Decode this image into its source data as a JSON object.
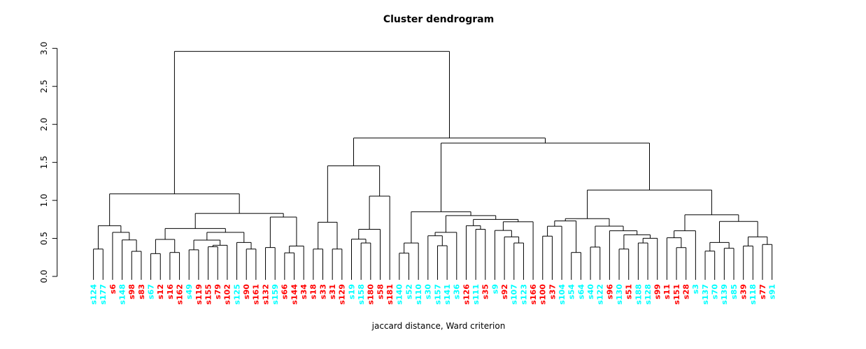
{
  "title": "Cluster dendrogram",
  "xlabel": "jaccard distance, Ward criterion",
  "colors": {
    "group_red": "#FF0000",
    "group_cyan": "#00FFFF",
    "line": "#000000"
  },
  "chart_data": {
    "type": "dendrogram",
    "title": "Cluster dendrogram",
    "xlabel": "jaccard distance, Ward criterion",
    "ylabel": "",
    "ylim": [
      0.0,
      3.0
    ],
    "yticks": [
      "0.0",
      "0.5",
      "1.0",
      "1.5",
      "2.0",
      "2.5",
      "3.0"
    ],
    "grid": false,
    "leaves": [
      {
        "label": "s124",
        "color": "cyan"
      },
      {
        "label": "s177",
        "color": "cyan"
      },
      {
        "label": "s6",
        "color": "red"
      },
      {
        "label": "s148",
        "color": "cyan"
      },
      {
        "label": "s98",
        "color": "red"
      },
      {
        "label": "s83",
        "color": "red"
      },
      {
        "label": "s67",
        "color": "cyan"
      },
      {
        "label": "s12",
        "color": "red"
      },
      {
        "label": "s16",
        "color": "red"
      },
      {
        "label": "s162",
        "color": "red"
      },
      {
        "label": "s49",
        "color": "cyan"
      },
      {
        "label": "s119",
        "color": "red"
      },
      {
        "label": "s155",
        "color": "red"
      },
      {
        "label": "s79",
        "color": "red"
      },
      {
        "label": "s102",
        "color": "red"
      },
      {
        "label": "s125",
        "color": "cyan"
      },
      {
        "label": "s90",
        "color": "red"
      },
      {
        "label": "s161",
        "color": "red"
      },
      {
        "label": "s132",
        "color": "red"
      },
      {
        "label": "s159",
        "color": "cyan"
      },
      {
        "label": "s66",
        "color": "red"
      },
      {
        "label": "s144",
        "color": "red"
      },
      {
        "label": "s34",
        "color": "red"
      },
      {
        "label": "s18",
        "color": "red"
      },
      {
        "label": "s33",
        "color": "red"
      },
      {
        "label": "s31",
        "color": "red"
      },
      {
        "label": "s129",
        "color": "red"
      },
      {
        "label": "s19",
        "color": "cyan"
      },
      {
        "label": "s158",
        "color": "cyan"
      },
      {
        "label": "s180",
        "color": "red"
      },
      {
        "label": "s58",
        "color": "red"
      },
      {
        "label": "s181",
        "color": "red"
      },
      {
        "label": "s140",
        "color": "cyan"
      },
      {
        "label": "s52",
        "color": "cyan"
      },
      {
        "label": "s110",
        "color": "cyan"
      },
      {
        "label": "s30",
        "color": "cyan"
      },
      {
        "label": "s157",
        "color": "cyan"
      },
      {
        "label": "s141",
        "color": "cyan"
      },
      {
        "label": "s36",
        "color": "cyan"
      },
      {
        "label": "s126",
        "color": "red"
      },
      {
        "label": "s111",
        "color": "cyan"
      },
      {
        "label": "s35",
        "color": "red"
      },
      {
        "label": "s9",
        "color": "cyan"
      },
      {
        "label": "s92",
        "color": "red"
      },
      {
        "label": "s107",
        "color": "cyan"
      },
      {
        "label": "s123",
        "color": "cyan"
      },
      {
        "label": "s166",
        "color": "red"
      },
      {
        "label": "s100",
        "color": "red"
      },
      {
        "label": "s37",
        "color": "red"
      },
      {
        "label": "s104",
        "color": "cyan"
      },
      {
        "label": "s54",
        "color": "cyan"
      },
      {
        "label": "s64",
        "color": "cyan"
      },
      {
        "label": "s40",
        "color": "cyan"
      },
      {
        "label": "s122",
        "color": "cyan"
      },
      {
        "label": "s96",
        "color": "red"
      },
      {
        "label": "s130",
        "color": "cyan"
      },
      {
        "label": "s51",
        "color": "red"
      },
      {
        "label": "s188",
        "color": "cyan"
      },
      {
        "label": "s128",
        "color": "cyan"
      },
      {
        "label": "s99",
        "color": "red"
      },
      {
        "label": "s11",
        "color": "red"
      },
      {
        "label": "s151",
        "color": "red"
      },
      {
        "label": "s28",
        "color": "red"
      },
      {
        "label": "s3",
        "color": "cyan"
      },
      {
        "label": "s137",
        "color": "cyan"
      },
      {
        "label": "s70",
        "color": "cyan"
      },
      {
        "label": "s139",
        "color": "cyan"
      },
      {
        "label": "s85",
        "color": "cyan"
      },
      {
        "label": "s39",
        "color": "red"
      },
      {
        "label": "s118",
        "color": "cyan"
      },
      {
        "label": "s77",
        "color": "red"
      },
      {
        "label": "s91",
        "color": "cyan"
      }
    ],
    "tree": [
      2.96,
      [
        1.086,
        [
          0.667,
          [
            0.36,
            "s124",
            "s177"
          ],
          [
            0.58,
            "s6",
            [
              0.48,
              "s148",
              [
                0.33,
                "s98",
                "s83"
              ]
            ]
          ]
        ],
        [
          0.829,
          [
            0.63,
            [
              0.487,
              [
                0.3,
                "s67",
                "s12"
              ],
              [
                0.315,
                "s16",
                "s162"
              ]
            ],
            [
              0.58,
              [
                0.478,
                [
                  0.35,
                  "s49",
                  "s119"
                ],
                [
                  0.41,
                  [
                    0.39,
                    "s155",
                    "s79"
                  ],
                  "s102"
                ]
              ],
              [
                0.447,
                "s125",
                [
                  0.36,
                  "s90",
                  "s161"
                ]
              ]
            ]
          ],
          [
            0.78,
            [
              0.38,
              "s132",
              "s159"
            ],
            [
              0.4,
              [
                0.31,
                "s66",
                "s144"
              ],
              "s34"
            ]
          ]
        ]
      ],
      [
        1.82,
        [
          1.454,
          [
            0.713,
            [
              0.36,
              "s18",
              "s33"
            ],
            [
              0.36,
              "s31",
              "s129"
            ]
          ],
          [
            1.056,
            [
              0.62,
              [
                0.49,
                "s19",
                [
                  0.44,
                  "s158",
                  "s180"
                ]
              ],
              "s58"
            ],
            "s181"
          ]
        ],
        [
          1.754,
          [
            0.851,
            [
              0.44,
              [
                0.306,
                "s140",
                "s52"
              ],
              "s110"
            ],
            [
              0.8,
              [
                0.58,
                [
                  0.535,
                  "s30",
                  [
                    0.404,
                    "s157",
                    "s141"
                  ]
                ],
                "s36"
              ],
              [
                0.75,
                [
                  0.667,
                  "s126",
                  [
                    0.62,
                    "s111",
                    "s35"
                  ]
                ],
                [
                  0.719,
                  [
                    0.605,
                    "s9",
                    [
                      0.52,
                      "s92",
                      [
                        0.44,
                        "s107",
                        "s123"
                      ]
                    ]
                  ],
                  "s166"
                ]
              ]
            ]
          ],
          [
            1.136,
            [
              0.76,
              [
                0.73,
                [
                  0.66,
                  [
                    0.53,
                    "s100",
                    "s37"
                  ],
                  "s104"
                ],
                [
                  0.315,
                  "s54",
                  "s64"
                ]
              ],
              [
                0.661,
                [
                  0.386,
                  "s40",
                  "s122"
                ],
                [
                  0.6,
                  "s96",
                  [
                    0.548,
                    [
                      0.36,
                      "s130",
                      "s51"
                    ],
                    [
                      0.502,
                      [
                        0.44,
                        "s188",
                        "s128"
                      ],
                      "s99"
                    ]
                  ]
                ]
              ]
            ],
            [
              0.81,
              [
                0.6,
                [
                  0.508,
                  "s11",
                  [
                    0.379,
                    "s151",
                    "s28"
                  ]
                ],
                "s3"
              ],
              [
                0.723,
                [
                  0.447,
                  [
                    0.333,
                    "s137",
                    "s70"
                  ],
                  [
                    0.37,
                    "s139",
                    "s85"
                  ]
                ],
                [
                  0.52,
                  [
                    0.4,
                    "s39",
                    "s118"
                  ],
                  [
                    0.42,
                    "s77",
                    "s91"
                  ]
                ]
              ]
            ]
          ]
        ]
      ]
    ]
  }
}
